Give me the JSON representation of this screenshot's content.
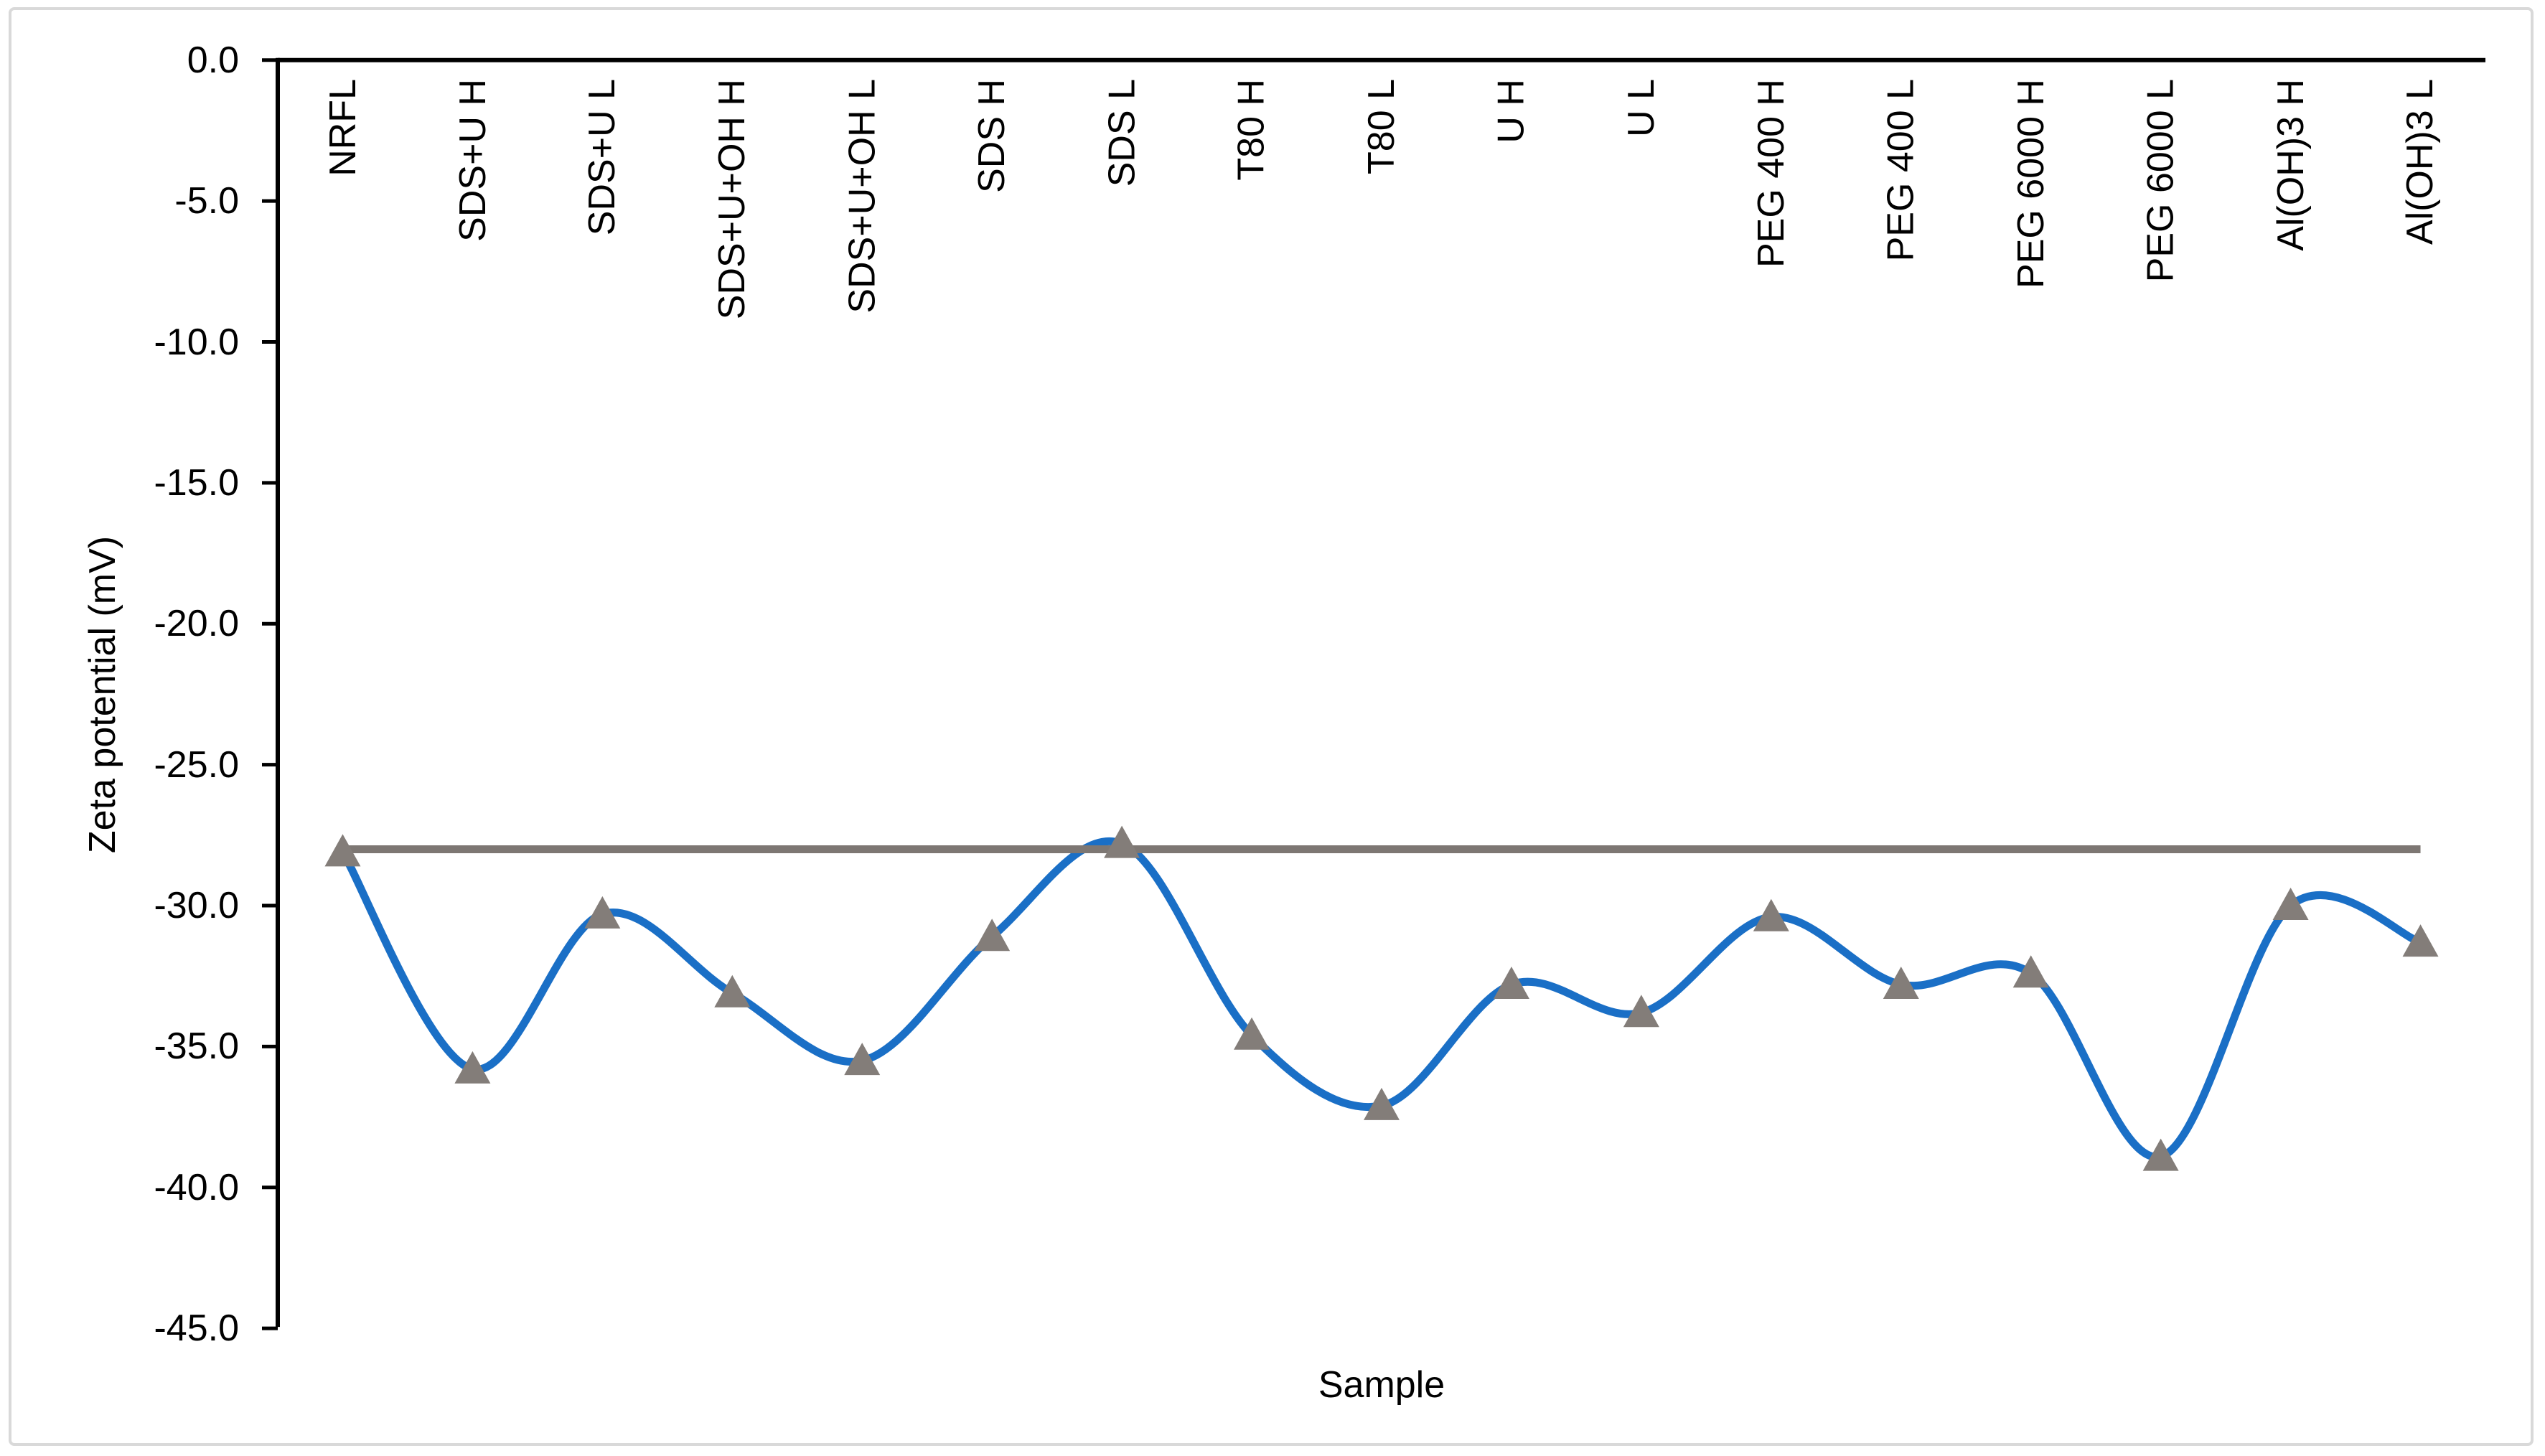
{
  "figure": {
    "kind": "zeta-potential-line-chart"
  },
  "chart_data": {
    "type": "line",
    "smooth": true,
    "title": "",
    "xlabel": "Sample",
    "ylabel": "Zeta potential (mV)",
    "categories": [
      "NRFL",
      "SDS+U H",
      "SDS+U L",
      "SDS+U+OH H",
      "SDS+U+OH L",
      "SDS H",
      "SDS L",
      "T80 H",
      "T80 L",
      "U H",
      "U L",
      "PEG 400 H",
      "PEG 400 L",
      "PEG 6000 H",
      "PEG 6000 L",
      "Al(OH)3 H",
      "Al(OH)3 L"
    ],
    "series": [
      {
        "name": "Zeta potential",
        "marker": "triangle",
        "color": "#1a6fc6",
        "values": [
          -28.1,
          -35.8,
          -30.3,
          -33.1,
          -35.5,
          -31.1,
          -27.8,
          -34.6,
          -37.1,
          -32.8,
          -33.8,
          -30.4,
          -32.8,
          -32.4,
          -38.9,
          -30.0,
          -31.3
        ]
      },
      {
        "name": "NRFL reference line",
        "marker": "none",
        "color": "#7d7773",
        "constant_value": -28.0,
        "span": "first-to-last-category"
      }
    ],
    "ylim": [
      0.0,
      -45.0
    ],
    "y_tick_step": -5.0,
    "y_tick_labels": [
      "0.0",
      "-5.0",
      "-10.0",
      "-15.0",
      "-20.0",
      "-25.0",
      "-30.0",
      "-35.0",
      "-40.0",
      "-45.0"
    ],
    "grid": false,
    "legend": "none",
    "category_label_rotation_deg": 90,
    "axis_color": "#000000",
    "frame_color": "#d9d9d9"
  }
}
